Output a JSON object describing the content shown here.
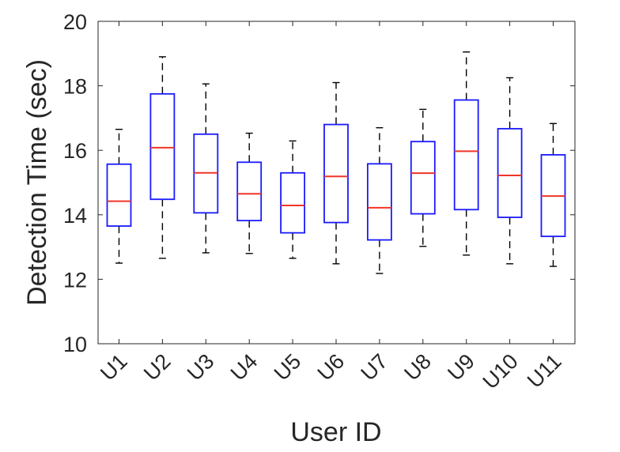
{
  "chart_data": {
    "type": "boxplot",
    "xlabel": "User ID",
    "ylabel": "Detection Time (sec)",
    "ylim": [
      10,
      20
    ],
    "yticks": [
      "10",
      "12",
      "14",
      "16",
      "18",
      "20"
    ],
    "grid": false,
    "categories": [
      "U1",
      "U2",
      "U3",
      "U4",
      "U5",
      "U6",
      "U7",
      "U8",
      "U9",
      "U10",
      "U11"
    ],
    "boxes": [
      {
        "label": "U1",
        "min": 12.5,
        "q1": 13.65,
        "median": 14.42,
        "q3": 15.57,
        "max": 16.65
      },
      {
        "label": "U2",
        "min": 12.65,
        "q1": 14.48,
        "median": 16.08,
        "q3": 17.75,
        "max": 18.9
      },
      {
        "label": "U3",
        "min": 12.82,
        "q1": 14.06,
        "median": 15.3,
        "q3": 16.5,
        "max": 18.06
      },
      {
        "label": "U4",
        "min": 12.8,
        "q1": 13.82,
        "median": 14.65,
        "q3": 15.63,
        "max": 16.53
      },
      {
        "label": "U5",
        "min": 12.65,
        "q1": 13.44,
        "median": 14.29,
        "q3": 15.3,
        "max": 16.29
      },
      {
        "label": "U6",
        "min": 12.48,
        "q1": 13.76,
        "median": 15.19,
        "q3": 16.8,
        "max": 18.1
      },
      {
        "label": "U7",
        "min": 12.18,
        "q1": 13.22,
        "median": 14.22,
        "q3": 15.58,
        "max": 16.7
      },
      {
        "label": "U8",
        "min": 13.02,
        "q1": 14.03,
        "median": 15.29,
        "q3": 16.27,
        "max": 17.27
      },
      {
        "label": "U9",
        "min": 12.75,
        "q1": 14.16,
        "median": 15.97,
        "q3": 17.56,
        "max": 19.05
      },
      {
        "label": "U10",
        "min": 12.48,
        "q1": 13.92,
        "median": 15.22,
        "q3": 16.67,
        "max": 18.25
      },
      {
        "label": "U11",
        "min": 12.4,
        "q1": 13.33,
        "median": 14.58,
        "q3": 15.86,
        "max": 16.83
      }
    ],
    "colors": {
      "box": "#1a1aff",
      "median": "#f0352a",
      "whisker": "#000000",
      "axis": "#262626"
    }
  }
}
